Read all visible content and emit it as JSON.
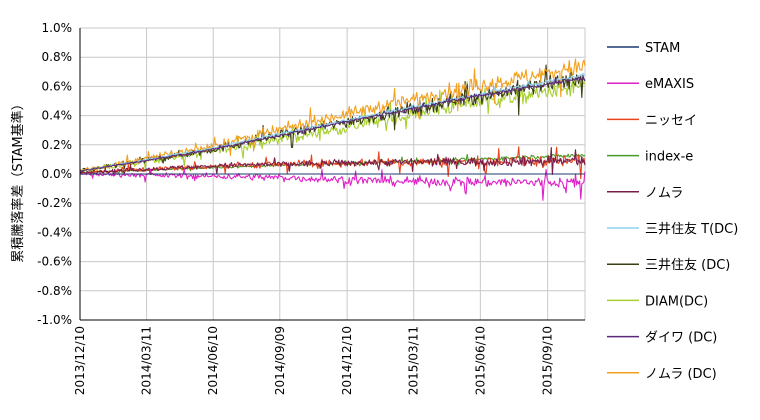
{
  "chart_data": {
    "type": "line",
    "title": "",
    "xlabel": "",
    "ylabel": "累積騰落率差（STAM基準）",
    "y_axis": {
      "min": -1.0,
      "max": 1.0,
      "ticks": [
        "1.0%",
        "0.8%",
        "0.6%",
        "0.4%",
        "0.2%",
        "0.0%",
        "-0.2%",
        "-0.4%",
        "-0.6%",
        "-0.8%",
        "-1.0%"
      ]
    },
    "x_axis": {
      "start": "2013/12/10",
      "end": "2015/10/31",
      "ticks": [
        "2013/12/10",
        "2014/03/11",
        "2014/06/10",
        "2014/09/09",
        "2014/12/10",
        "2015/03/11",
        "2015/06/10",
        "2015/09/10"
      ]
    },
    "grid": true,
    "legend_position": "right",
    "series": [
      {
        "name": "STAM",
        "color": "#1f3a6e",
        "key": [
          [
            0,
            0.0
          ],
          [
            1,
            0.0
          ]
        ],
        "noise": 0.0
      },
      {
        "name": "eMAXIS",
        "color": "#e020c8",
        "key": [
          [
            0,
            0.0
          ],
          [
            0.35,
            -0.02
          ],
          [
            0.62,
            -0.05
          ],
          [
            1,
            -0.06
          ]
        ],
        "noise": 0.035
      },
      {
        "name": "ニッセイ",
        "color": "#e8441c",
        "key": [
          [
            0,
            0.01
          ],
          [
            0.3,
            0.06
          ],
          [
            0.6,
            0.08
          ],
          [
            1,
            0.09
          ]
        ],
        "noise": 0.035
      },
      {
        "name": "index-e",
        "color": "#4c9a28",
        "key": [
          [
            0,
            0.01
          ],
          [
            0.4,
            0.06
          ],
          [
            0.7,
            0.09
          ],
          [
            1,
            0.13
          ]
        ],
        "noise": 0.012
      },
      {
        "name": "ノムラ",
        "color": "#7a1c4a",
        "key": [
          [
            0,
            0.01
          ],
          [
            0.3,
            0.06
          ],
          [
            0.6,
            0.08
          ],
          [
            1,
            0.09
          ]
        ],
        "noise": 0.03
      },
      {
        "name": "三井住友 T(DC)",
        "color": "#8fd0ee",
        "key": [
          [
            0,
            0.02
          ],
          [
            0.25,
            0.17
          ],
          [
            0.5,
            0.35
          ],
          [
            0.75,
            0.52
          ],
          [
            1,
            0.68
          ]
        ],
        "noise": 0.01
      },
      {
        "name": "三井住友 (DC)",
        "color": "#3d3d12",
        "key": [
          [
            0,
            0.02
          ],
          [
            0.25,
            0.16
          ],
          [
            0.5,
            0.34
          ],
          [
            0.75,
            0.51
          ],
          [
            1,
            0.66
          ]
        ],
        "noise": 0.05
      },
      {
        "name": "DIAM(DC)",
        "color": "#a8d030",
        "key": [
          [
            0,
            0.02
          ],
          [
            0.25,
            0.15
          ],
          [
            0.5,
            0.3
          ],
          [
            0.75,
            0.47
          ],
          [
            1,
            0.6
          ]
        ],
        "noise": 0.05
      },
      {
        "name": "ダイワ (DC)",
        "color": "#5a2a7a",
        "key": [
          [
            0,
            0.02
          ],
          [
            0.25,
            0.16
          ],
          [
            0.5,
            0.34
          ],
          [
            0.75,
            0.51
          ],
          [
            1,
            0.66
          ]
        ],
        "noise": 0.012
      },
      {
        "name": "ノムラ (DC)",
        "color": "#f2a020",
        "key": [
          [
            0,
            0.02
          ],
          [
            0.25,
            0.18
          ],
          [
            0.5,
            0.39
          ],
          [
            0.75,
            0.58
          ],
          [
            1,
            0.74
          ]
        ],
        "noise": 0.05
      }
    ]
  }
}
